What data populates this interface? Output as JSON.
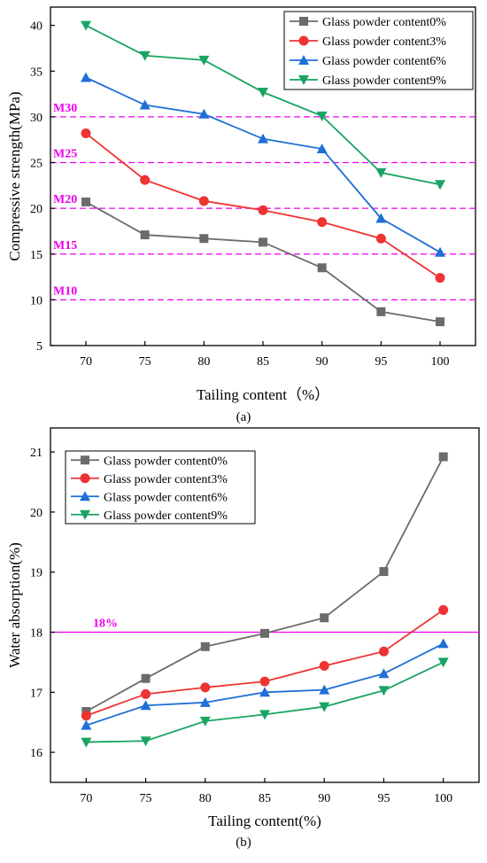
{
  "chart_data": [
    {
      "type": "line",
      "panel_label": "(a)",
      "xlabel": "Tailing content（%）",
      "ylabel": "Compressive strength(MPa)",
      "x": [
        70,
        75,
        80,
        85,
        90,
        95,
        100
      ],
      "xlim": [
        67,
        103
      ],
      "ylim": [
        5,
        42
      ],
      "yticks": [
        5,
        10,
        15,
        20,
        25,
        30,
        35,
        40
      ],
      "legend_position": "top-right",
      "series": [
        {
          "name": "Glass powder content0%",
          "color": "#6b6b6b",
          "marker": "square",
          "values": [
            20.7,
            17.1,
            16.7,
            16.3,
            13.5,
            8.7,
            7.6
          ]
        },
        {
          "name": "Glass powder content3%",
          "color": "#ee3333",
          "marker": "circle",
          "values": [
            28.2,
            23.1,
            20.8,
            19.8,
            18.5,
            16.7,
            12.4
          ]
        },
        {
          "name": "Glass powder content6%",
          "color": "#1f6fd6",
          "marker": "triangle-up",
          "values": [
            34.3,
            31.3,
            30.3,
            27.6,
            26.5,
            18.9,
            15.2
          ]
        },
        {
          "name": "Glass powder content9%",
          "color": "#19a463",
          "marker": "triangle-down",
          "values": [
            40.0,
            36.7,
            36.2,
            32.7,
            30.1,
            23.9,
            22.6
          ]
        }
      ],
      "reference_lines": [
        {
          "label": "M30",
          "value": 30,
          "color": "#ee00ee"
        },
        {
          "label": "M25",
          "value": 25,
          "color": "#ee00ee"
        },
        {
          "label": "M20",
          "value": 20,
          "color": "#ee00ee"
        },
        {
          "label": "M15",
          "value": 15,
          "color": "#ee00ee"
        },
        {
          "label": "M10",
          "value": 10,
          "color": "#ee00ee"
        }
      ]
    },
    {
      "type": "line",
      "panel_label": "(b)",
      "xlabel": "Tailing content(%)",
      "ylabel": "Water absorption(%)",
      "x": [
        70,
        75,
        80,
        85,
        90,
        95,
        100
      ],
      "xlim": [
        67,
        103
      ],
      "ylim": [
        15.5,
        21.4
      ],
      "yticks": [
        16,
        17,
        18,
        19,
        20,
        21
      ],
      "legend_position": "top-left",
      "series": [
        {
          "name": "Glass powder content0%",
          "color": "#6b6b6b",
          "marker": "square",
          "values": [
            16.68,
            17.23,
            17.76,
            17.98,
            18.24,
            19.01,
            20.92
          ]
        },
        {
          "name": "Glass powder content3%",
          "color": "#ee3333",
          "marker": "circle",
          "values": [
            16.61,
            16.97,
            17.08,
            17.18,
            17.44,
            17.68,
            18.37
          ]
        },
        {
          "name": "Glass powder content6%",
          "color": "#1f6fd6",
          "marker": "triangle-up",
          "values": [
            16.45,
            16.78,
            16.83,
            17.0,
            17.04,
            17.31,
            17.81
          ]
        },
        {
          "name": "Glass powder content9%",
          "color": "#19a463",
          "marker": "triangle-down",
          "values": [
            16.17,
            16.19,
            16.52,
            16.63,
            16.76,
            17.03,
            17.5
          ]
        }
      ],
      "reference_lines": [
        {
          "label": "18%",
          "value": 18,
          "color": "#ee00ee"
        }
      ]
    }
  ]
}
